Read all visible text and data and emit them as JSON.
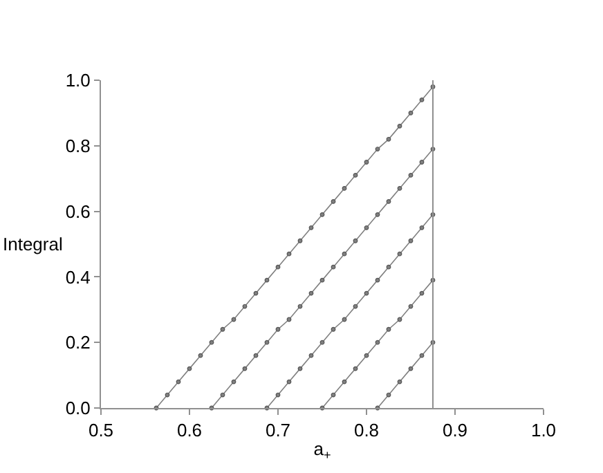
{
  "chart_data": {
    "type": "line",
    "xlabel": "a$_{+}$",
    "ylabel": "Integral",
    "xlim": [
      0.5,
      1.0
    ],
    "xticks": [
      {
        "value": 0.5,
        "label": "0.5"
      },
      {
        "value": 0.6,
        "label": "0.6"
      },
      {
        "value": 0.7,
        "label": "0.7"
      },
      {
        "value": 0.8,
        "label": "0.8"
      },
      {
        "value": 0.9,
        "label": "0.9"
      },
      {
        "value": 1.0,
        "label": "1.0"
      }
    ],
    "ylim": [
      0.0,
      1.0
    ],
    "yticks": [
      {
        "value": 0.0,
        "label": "0.0"
      },
      {
        "value": 0.2,
        "label": "0.2"
      },
      {
        "value": 0.4,
        "label": "0.4"
      },
      {
        "value": 0.6,
        "label": "0.6"
      },
      {
        "value": 0.8,
        "label": "0.8"
      },
      {
        "value": 1.0,
        "label": "1.0"
      }
    ],
    "marker": "circle",
    "line_style": "solid",
    "series": [
      {
        "color": "#808080",
        "x": [
          0.5625,
          0.575,
          0.5875,
          0.6,
          0.6125,
          0.625,
          0.6375,
          0.65,
          0.6625,
          0.675,
          0.6875,
          0.7,
          0.7125,
          0.725,
          0.7375,
          0.75,
          0.7625,
          0.775,
          0.7875,
          0.8,
          0.8125,
          0.825,
          0.8375,
          0.85,
          0.8625,
          0.875
        ],
        "values": [
          0,
          0.04,
          0.08,
          0.12,
          0.16,
          0.2,
          0.24,
          0.27,
          0.31,
          0.35,
          0.39,
          0.43,
          0.47,
          0.51,
          0.55,
          0.59,
          0.63,
          0.67,
          0.71,
          0.75,
          0.79,
          0.82,
          0.86,
          0.9,
          0.94,
          0.98
        ]
      },
      {
        "color": "#808080",
        "x": [
          0.625,
          0.6375,
          0.65,
          0.6625,
          0.675,
          0.6875,
          0.7,
          0.7125,
          0.725,
          0.7375,
          0.75,
          0.7625,
          0.775,
          0.7875,
          0.8,
          0.8125,
          0.825,
          0.8375,
          0.85,
          0.8625,
          0.875
        ],
        "values": [
          0,
          0.04,
          0.08,
          0.12,
          0.16,
          0.2,
          0.24,
          0.27,
          0.31,
          0.35,
          0.39,
          0.43,
          0.47,
          0.51,
          0.55,
          0.59,
          0.63,
          0.67,
          0.71,
          0.75,
          0.79
        ]
      },
      {
        "color": "#808080",
        "x": [
          0.6875,
          0.7,
          0.7125,
          0.725,
          0.7375,
          0.75,
          0.7625,
          0.775,
          0.7875,
          0.8,
          0.8125,
          0.825,
          0.8375,
          0.85,
          0.8625,
          0.875
        ],
        "values": [
          0,
          0.04,
          0.08,
          0.12,
          0.16,
          0.2,
          0.24,
          0.27,
          0.31,
          0.35,
          0.39,
          0.43,
          0.47,
          0.51,
          0.55,
          0.59
        ]
      },
      {
        "color": "#808080",
        "x": [
          0.75,
          0.7625,
          0.775,
          0.7875,
          0.8,
          0.8125,
          0.825,
          0.8375,
          0.85,
          0.8625,
          0.875
        ],
        "values": [
          0,
          0.04,
          0.08,
          0.12,
          0.16,
          0.2,
          0.24,
          0.27,
          0.31,
          0.35,
          0.39
        ]
      },
      {
        "color": "#808080",
        "x": [
          0.8125,
          0.825,
          0.8375,
          0.85,
          0.8625,
          0.875
        ],
        "values": [
          0,
          0.04,
          0.08,
          0.12,
          0.16,
          0.2
        ]
      }
    ],
    "ref_lines": [
      {
        "axis": "x",
        "value": 0.875,
        "color": "#909090"
      }
    ]
  }
}
